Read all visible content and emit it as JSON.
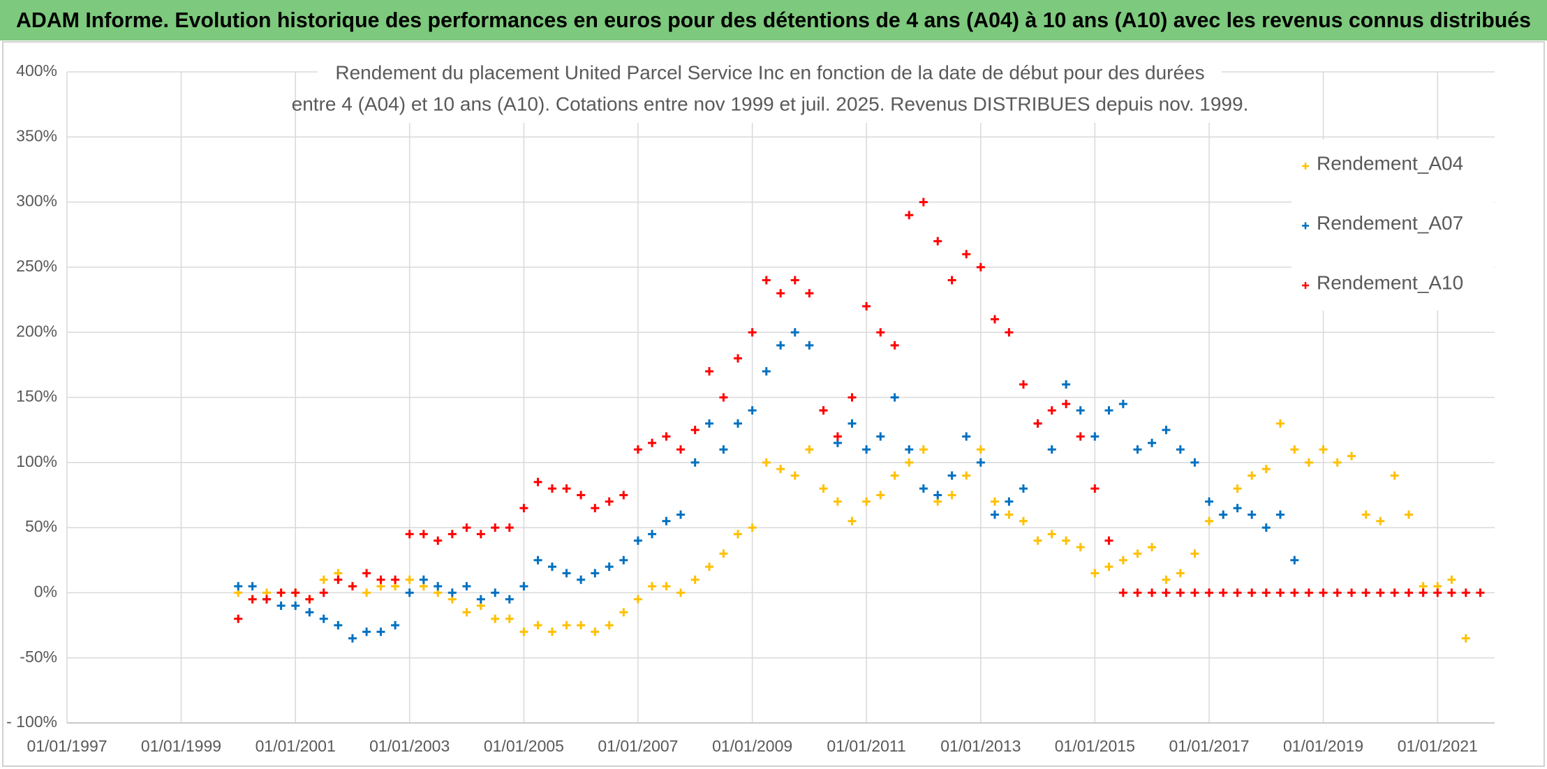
{
  "header": {
    "title": "ADAM Informe. Evolution historique des performances en euros pour des détentions de 4 ans (A04) à 10 ans (A10) avec les revenus connus distribués"
  },
  "chart_data": {
    "type": "scatter",
    "title": [
      "Rendement du placement United Parcel Service Inc en fonction de la date de début pour des durées",
      "entre 4 (A04) et 10 ans (A10). Cotations entre nov 1999 et juil. 2025. Revenus DISTRIBUES depuis nov. 1999."
    ],
    "x": [
      "2000-01-01",
      "2000-04-01",
      "2000-07-01",
      "2000-10-01",
      "2001-01-01",
      "2001-04-01",
      "2001-07-01",
      "2001-10-01",
      "2002-01-01",
      "2002-04-01",
      "2002-07-01",
      "2002-10-01",
      "2003-01-01",
      "2003-04-01",
      "2003-07-01",
      "2003-10-01",
      "2004-01-01",
      "2004-04-01",
      "2004-07-01",
      "2004-10-01",
      "2005-01-01",
      "2005-04-01",
      "2005-07-01",
      "2005-10-01",
      "2006-01-01",
      "2006-04-01",
      "2006-07-01",
      "2006-10-01",
      "2007-01-01",
      "2007-04-01",
      "2007-07-01",
      "2007-10-01",
      "2008-01-01",
      "2008-04-01",
      "2008-07-01",
      "2008-10-01",
      "2009-01-01",
      "2009-04-01",
      "2009-07-01",
      "2009-10-01",
      "2010-01-01",
      "2010-04-01",
      "2010-07-01",
      "2010-10-01",
      "2011-01-01",
      "2011-04-01",
      "2011-07-01",
      "2011-10-01",
      "2012-01-01",
      "2012-04-01",
      "2012-07-01",
      "2012-10-01",
      "2013-01-01",
      "2013-04-01",
      "2013-07-01",
      "2013-10-01",
      "2014-01-01",
      "2014-04-01",
      "2014-07-01",
      "2014-10-01",
      "2015-01-01",
      "2015-04-01",
      "2015-07-01",
      "2015-10-01",
      "2016-01-01",
      "2016-04-01",
      "2016-07-01",
      "2016-10-01",
      "2017-01-01",
      "2017-04-01",
      "2017-07-01",
      "2017-10-01",
      "2018-01-01",
      "2018-04-01",
      "2018-07-01",
      "2018-10-01",
      "2019-01-01",
      "2019-04-01",
      "2019-07-01",
      "2019-10-01",
      "2020-01-01",
      "2020-04-01",
      "2020-07-01",
      "2020-10-01",
      "2021-01-01",
      "2021-04-01",
      "2021-07-01",
      "2021-10-01"
    ],
    "series": [
      {
        "name": "Rendement_A04",
        "color": "#ffc000",
        "values": [
          0,
          -5,
          0,
          0,
          0,
          -5,
          10,
          15,
          5,
          0,
          5,
          5,
          10,
          5,
          0,
          -5,
          -15,
          -10,
          -20,
          -20,
          -30,
          -25,
          -30,
          -25,
          -25,
          -30,
          -25,
          -15,
          -5,
          5,
          5,
          0,
          10,
          20,
          30,
          45,
          50,
          100,
          95,
          90,
          110,
          80,
          70,
          55,
          70,
          75,
          90,
          100,
          110,
          70,
          75,
          90,
          110,
          70,
          60,
          55,
          40,
          45,
          40,
          35,
          15,
          20,
          25,
          30,
          35,
          10,
          15,
          30,
          55,
          60,
          80,
          90,
          95,
          130,
          110,
          100,
          110,
          100,
          105,
          60,
          55,
          90,
          60,
          5,
          5,
          10,
          -35,
          null
        ]
      },
      {
        "name": "Rendement_A07",
        "color": "#0070c0",
        "values": [
          5,
          5,
          -5,
          -10,
          -10,
          -15,
          -20,
          -25,
          -35,
          -30,
          -30,
          -25,
          0,
          10,
          5,
          0,
          5,
          -5,
          0,
          -5,
          5,
          25,
          20,
          15,
          10,
          15,
          20,
          25,
          40,
          45,
          55,
          60,
          100,
          130,
          110,
          130,
          140,
          170,
          190,
          200,
          190,
          140,
          115,
          130,
          110,
          120,
          150,
          110,
          80,
          75,
          90,
          120,
          100,
          60,
          70,
          80,
          130,
          110,
          160,
          140,
          120,
          140,
          145,
          110,
          115,
          125,
          110,
          100,
          70,
          60,
          65,
          60,
          50,
          60,
          25,
          null,
          null,
          null,
          null,
          null,
          null,
          null,
          null,
          null,
          null,
          null,
          null,
          null
        ]
      },
      {
        "name": "Rendement_A10",
        "color": "#ff0000",
        "values": [
          -20,
          -5,
          -5,
          0,
          0,
          -5,
          0,
          10,
          5,
          15,
          10,
          10,
          45,
          45,
          40,
          45,
          50,
          45,
          50,
          50,
          65,
          85,
          80,
          80,
          75,
          65,
          70,
          75,
          110,
          115,
          120,
          110,
          125,
          170,
          150,
          180,
          200,
          240,
          230,
          240,
          230,
          140,
          120,
          150,
          220,
          200,
          190,
          290,
          300,
          270,
          240,
          260,
          250,
          210,
          200,
          160,
          130,
          140,
          145,
          120,
          80,
          40,
          0,
          0,
          0,
          0,
          0,
          0,
          0,
          0,
          0,
          0,
          0,
          0,
          0,
          0,
          0,
          0,
          0,
          0,
          0,
          0,
          0,
          0,
          0,
          0,
          0,
          0
        ]
      }
    ],
    "xlim": [
      "1997-01-01",
      "2022-01-01"
    ],
    "xticks": [
      {
        "value": "1997-01-01",
        "label": "01/01/1997"
      },
      {
        "value": "1999-01-01",
        "label": "01/01/1999"
      },
      {
        "value": "2001-01-01",
        "label": "01/01/2001"
      },
      {
        "value": "2003-01-01",
        "label": "01/01/2003"
      },
      {
        "value": "2005-01-01",
        "label": "01/01/2005"
      },
      {
        "value": "2007-01-01",
        "label": "01/01/2007"
      },
      {
        "value": "2009-01-01",
        "label": "01/01/2009"
      },
      {
        "value": "2011-01-01",
        "label": "01/01/2011"
      },
      {
        "value": "2013-01-01",
        "label": "01/01/2013"
      },
      {
        "value": "2015-01-01",
        "label": "01/01/2015"
      },
      {
        "value": "2017-01-01",
        "label": "01/01/2017"
      },
      {
        "value": "2019-01-01",
        "label": "01/01/2019"
      },
      {
        "value": "2021-01-01",
        "label": "01/01/2021"
      }
    ],
    "ylim": [
      -100,
      400
    ],
    "yticks": [
      {
        "value": -100,
        "label": "- 100%"
      },
      {
        "value": -50,
        "label": "-50%"
      },
      {
        "value": 0,
        "label": "0%"
      },
      {
        "value": 50,
        "label": "50%"
      },
      {
        "value": 100,
        "label": "100%"
      },
      {
        "value": 150,
        "label": "150%"
      },
      {
        "value": 200,
        "label": "200%"
      },
      {
        "value": 250,
        "label": "250%"
      },
      {
        "value": 300,
        "label": "300%"
      },
      {
        "value": 350,
        "label": "350%"
      },
      {
        "value": 400,
        "label": "400%"
      }
    ],
    "grid": true
  }
}
